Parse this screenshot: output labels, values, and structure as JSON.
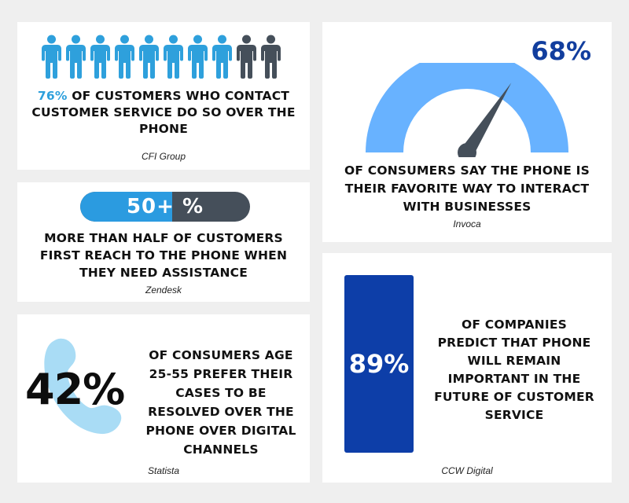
{
  "colors": {
    "accent_blue": "#2ea0dc",
    "dark_grey": "#454f5a",
    "gauge_blue": "#68b2ff",
    "navy": "#0d3ea8",
    "light_blue": "#a9dcf5"
  },
  "cfi": {
    "people_total": 10,
    "people_highlighted": 8,
    "stat": "76%",
    "text": "of customers who contact customer service do so over the phone",
    "source": "CFI Group"
  },
  "zendesk": {
    "pill_label": "50+ %",
    "pill_fill_fraction": 0.5,
    "text": "more than half of customers first reach to the phone when they need assistance",
    "source": "Zendesk"
  },
  "statista": {
    "icon": "phone-handset-icon",
    "stat": "42%",
    "text": "of consumers age 25-55 prefer their cases to be resolved over the phone over digital channels",
    "source": "Statista"
  },
  "invoca": {
    "icon": "gauge-icon",
    "stat": "68%",
    "gauge_fraction": 0.68,
    "text": "of consumers say the phone is their favorite way to interact with businesses",
    "source": "Invoca"
  },
  "ccw": {
    "stat": "89%",
    "text": "of companies predict that phone will remain important in the future of customer service",
    "source": "CCW Digital"
  }
}
